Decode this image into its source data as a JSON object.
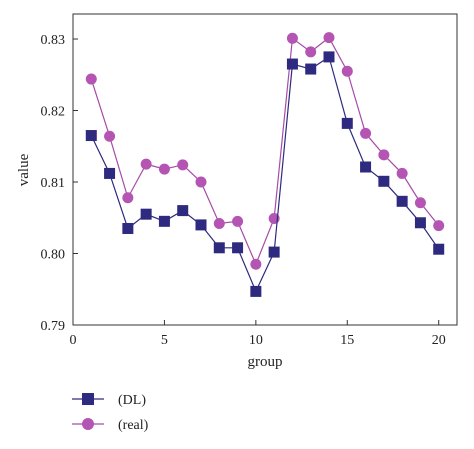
{
  "chart_data": {
    "type": "line",
    "title": "",
    "xlabel": "group",
    "ylabel": "value",
    "xlim": [
      0,
      21
    ],
    "ylim": [
      0.79,
      0.8335
    ],
    "xticks": [
      0,
      5,
      10,
      15,
      20
    ],
    "yticks": [
      0.79,
      0.8,
      0.81,
      0.82,
      0.83
    ],
    "ytick_labels": [
      "0.79",
      "0.80",
      "0.81",
      "0.82",
      "0.83"
    ],
    "grid": false,
    "legend_position": "bottom-left",
    "series": [
      {
        "name": "(DL)",
        "color": "#2e2a7f",
        "marker": "square",
        "x": [
          1,
          2,
          3,
          4,
          5,
          6,
          7,
          8,
          9,
          10,
          11,
          12,
          13,
          14,
          15,
          16,
          17,
          18,
          19,
          20
        ],
        "values": [
          0.8165,
          0.8112,
          0.8035,
          0.8055,
          0.8045,
          0.806,
          0.804,
          0.8008,
          0.8008,
          0.7947,
          0.8002,
          0.8265,
          0.8258,
          0.8275,
          0.8182,
          0.8121,
          0.8101,
          0.8073,
          0.8043,
          0.8006
        ]
      },
      {
        "name": "(real)",
        "color": "#a64ca6",
        "marker": "circle",
        "x": [
          1,
          2,
          3,
          4,
          5,
          6,
          7,
          8,
          9,
          10,
          11,
          12,
          13,
          14,
          15,
          16,
          17,
          18,
          19,
          20
        ],
        "values": [
          0.8244,
          0.8164,
          0.8078,
          0.8125,
          0.8118,
          0.8124,
          0.81,
          0.8042,
          0.8045,
          0.7985,
          0.8049,
          0.8301,
          0.8282,
          0.8302,
          0.8255,
          0.8168,
          0.8138,
          0.8112,
          0.8071,
          0.8039
        ]
      }
    ]
  }
}
